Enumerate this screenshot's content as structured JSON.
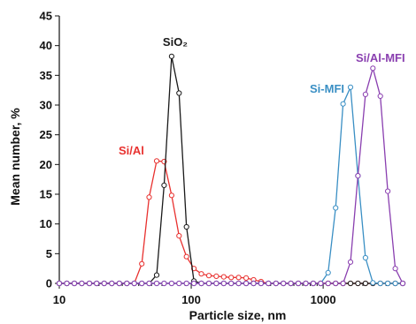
{
  "chart_data": {
    "type": "line",
    "xlabel": "Particle size, nm",
    "ylabel": "Mean number, %",
    "xscale": "log",
    "xlim": [
      10,
      4200
    ],
    "ylim": [
      0,
      45
    ],
    "grid": false,
    "x_ticks": [
      10,
      100,
      1000
    ],
    "x_tick_labels": [
      "10",
      "100",
      "1000"
    ],
    "y_ticks": [
      0,
      5,
      10,
      15,
      20,
      25,
      30,
      35,
      40,
      45
    ],
    "y_tick_labels": [
      "0",
      "5",
      "10",
      "15",
      "20",
      "25",
      "30",
      "35",
      "40",
      "45"
    ],
    "series": [
      {
        "name": "Si/Al",
        "color": "#e8312f",
        "x": [
          10,
          11.4,
          13,
          14.8,
          16.9,
          19.2,
          21.9,
          25,
          28.5,
          32.5,
          37,
          42.2,
          48,
          54.7,
          62.3,
          71,
          80.8,
          92,
          104.8,
          119.4,
          136,
          154.9,
          176.4,
          200.9,
          228.8,
          260.6,
          296.8,
          338.1,
          385.1,
          438.6,
          499.6,
          569,
          648.1,
          738.2,
          840.8,
          957.7,
          1090.8,
          1242.4,
          1415.1,
          1611.8,
          1835.9,
          2091.1,
          2381.8,
          2712.9,
          3090,
          3519.5,
          4008.8
        ],
        "y": [
          0,
          0,
          0,
          0,
          0,
          0,
          0,
          0,
          0,
          0,
          0,
          3.3,
          14.5,
          20.6,
          20.5,
          14.8,
          8,
          4.5,
          2.5,
          1.6,
          1.3,
          1.2,
          1.1,
          1,
          1,
          0.9,
          0.6,
          0.3,
          0,
          0,
          0,
          0,
          0,
          0,
          0,
          0,
          0,
          0,
          0,
          0,
          0,
          0,
          0,
          0,
          0,
          0,
          0
        ]
      },
      {
        "name": "SiO₂",
        "color": "#1a1a1a",
        "x": [
          10,
          11.4,
          13,
          14.8,
          16.9,
          19.2,
          21.9,
          25,
          28.5,
          32.5,
          37,
          42.2,
          48,
          54.7,
          62.3,
          71,
          80.8,
          92,
          104.8,
          119.4,
          136,
          154.9,
          176.4,
          200.9,
          228.8,
          260.6,
          296.8,
          338.1,
          385.1,
          438.6,
          499.6,
          569,
          648.1,
          738.2,
          840.8,
          957.7,
          1090.8,
          1242.4,
          1415.1,
          1611.8,
          1835.9,
          2091.1,
          2381.8,
          2712.9,
          3090,
          3519.5,
          4008.8
        ],
        "y": [
          0,
          0,
          0,
          0,
          0,
          0,
          0,
          0,
          0,
          0,
          0,
          0,
          0,
          1.4,
          16.5,
          38.2,
          32,
          9.5,
          0.4,
          0,
          0,
          0,
          0,
          0,
          0,
          0,
          0,
          0,
          0,
          0,
          0,
          0,
          0,
          0,
          0,
          0,
          0,
          0,
          0,
          0,
          0,
          0,
          0,
          0,
          0,
          0,
          0
        ]
      },
      {
        "name": "Si-MFI",
        "color": "#3a8fc4",
        "x": [
          10,
          11.4,
          13,
          14.8,
          16.9,
          19.2,
          21.9,
          25,
          28.5,
          32.5,
          37,
          42.2,
          48,
          54.7,
          62.3,
          71,
          80.8,
          92,
          104.8,
          119.4,
          136,
          154.9,
          176.4,
          200.9,
          228.8,
          260.6,
          296.8,
          338.1,
          385.1,
          438.6,
          499.6,
          569,
          648.1,
          738.2,
          840.8,
          957.7,
          1090.8,
          1242.4,
          1415.1,
          1611.8,
          1835.9,
          2091.1,
          2381.8,
          2712.9,
          3090,
          3519.5,
          4008.8
        ],
        "y": [
          0,
          0,
          0,
          0,
          0,
          0,
          0,
          0,
          0,
          0,
          0,
          0,
          0,
          0,
          0,
          0,
          0,
          0,
          0,
          0,
          0,
          0,
          0,
          0,
          0,
          0,
          0,
          0,
          0,
          0,
          0,
          0,
          0,
          0,
          0,
          0,
          1.8,
          12.7,
          30.2,
          33,
          18.1,
          4.3,
          0.1,
          0,
          0,
          0,
          0
        ]
      },
      {
        "name": "Si/Al-MFI",
        "color": "#8a3fb0",
        "x": [
          10,
          11.4,
          13,
          14.8,
          16.9,
          19.2,
          21.9,
          25,
          28.5,
          32.5,
          37,
          42.2,
          48,
          54.7,
          62.3,
          71,
          80.8,
          92,
          104.8,
          119.4,
          136,
          154.9,
          176.4,
          200.9,
          228.8,
          260.6,
          296.8,
          338.1,
          385.1,
          438.6,
          499.6,
          569,
          648.1,
          738.2,
          840.8,
          957.7,
          1090.8,
          1242.4,
          1415.1,
          1611.8,
          1835.9,
          2091.1,
          2381.8,
          2712.9,
          3090,
          3519.5,
          4008.8
        ],
        "y": [
          0,
          0,
          0,
          0,
          0,
          0,
          0,
          0,
          0,
          0,
          0,
          0,
          0,
          0,
          0,
          0,
          0,
          0,
          0,
          0,
          0,
          0,
          0,
          0,
          0,
          0,
          0,
          0,
          0,
          0,
          0,
          0,
          0,
          0,
          0,
          0,
          0,
          0,
          0,
          3.6,
          18.1,
          31.8,
          36.2,
          31.5,
          15.5,
          2.5,
          0
        ]
      }
    ]
  }
}
